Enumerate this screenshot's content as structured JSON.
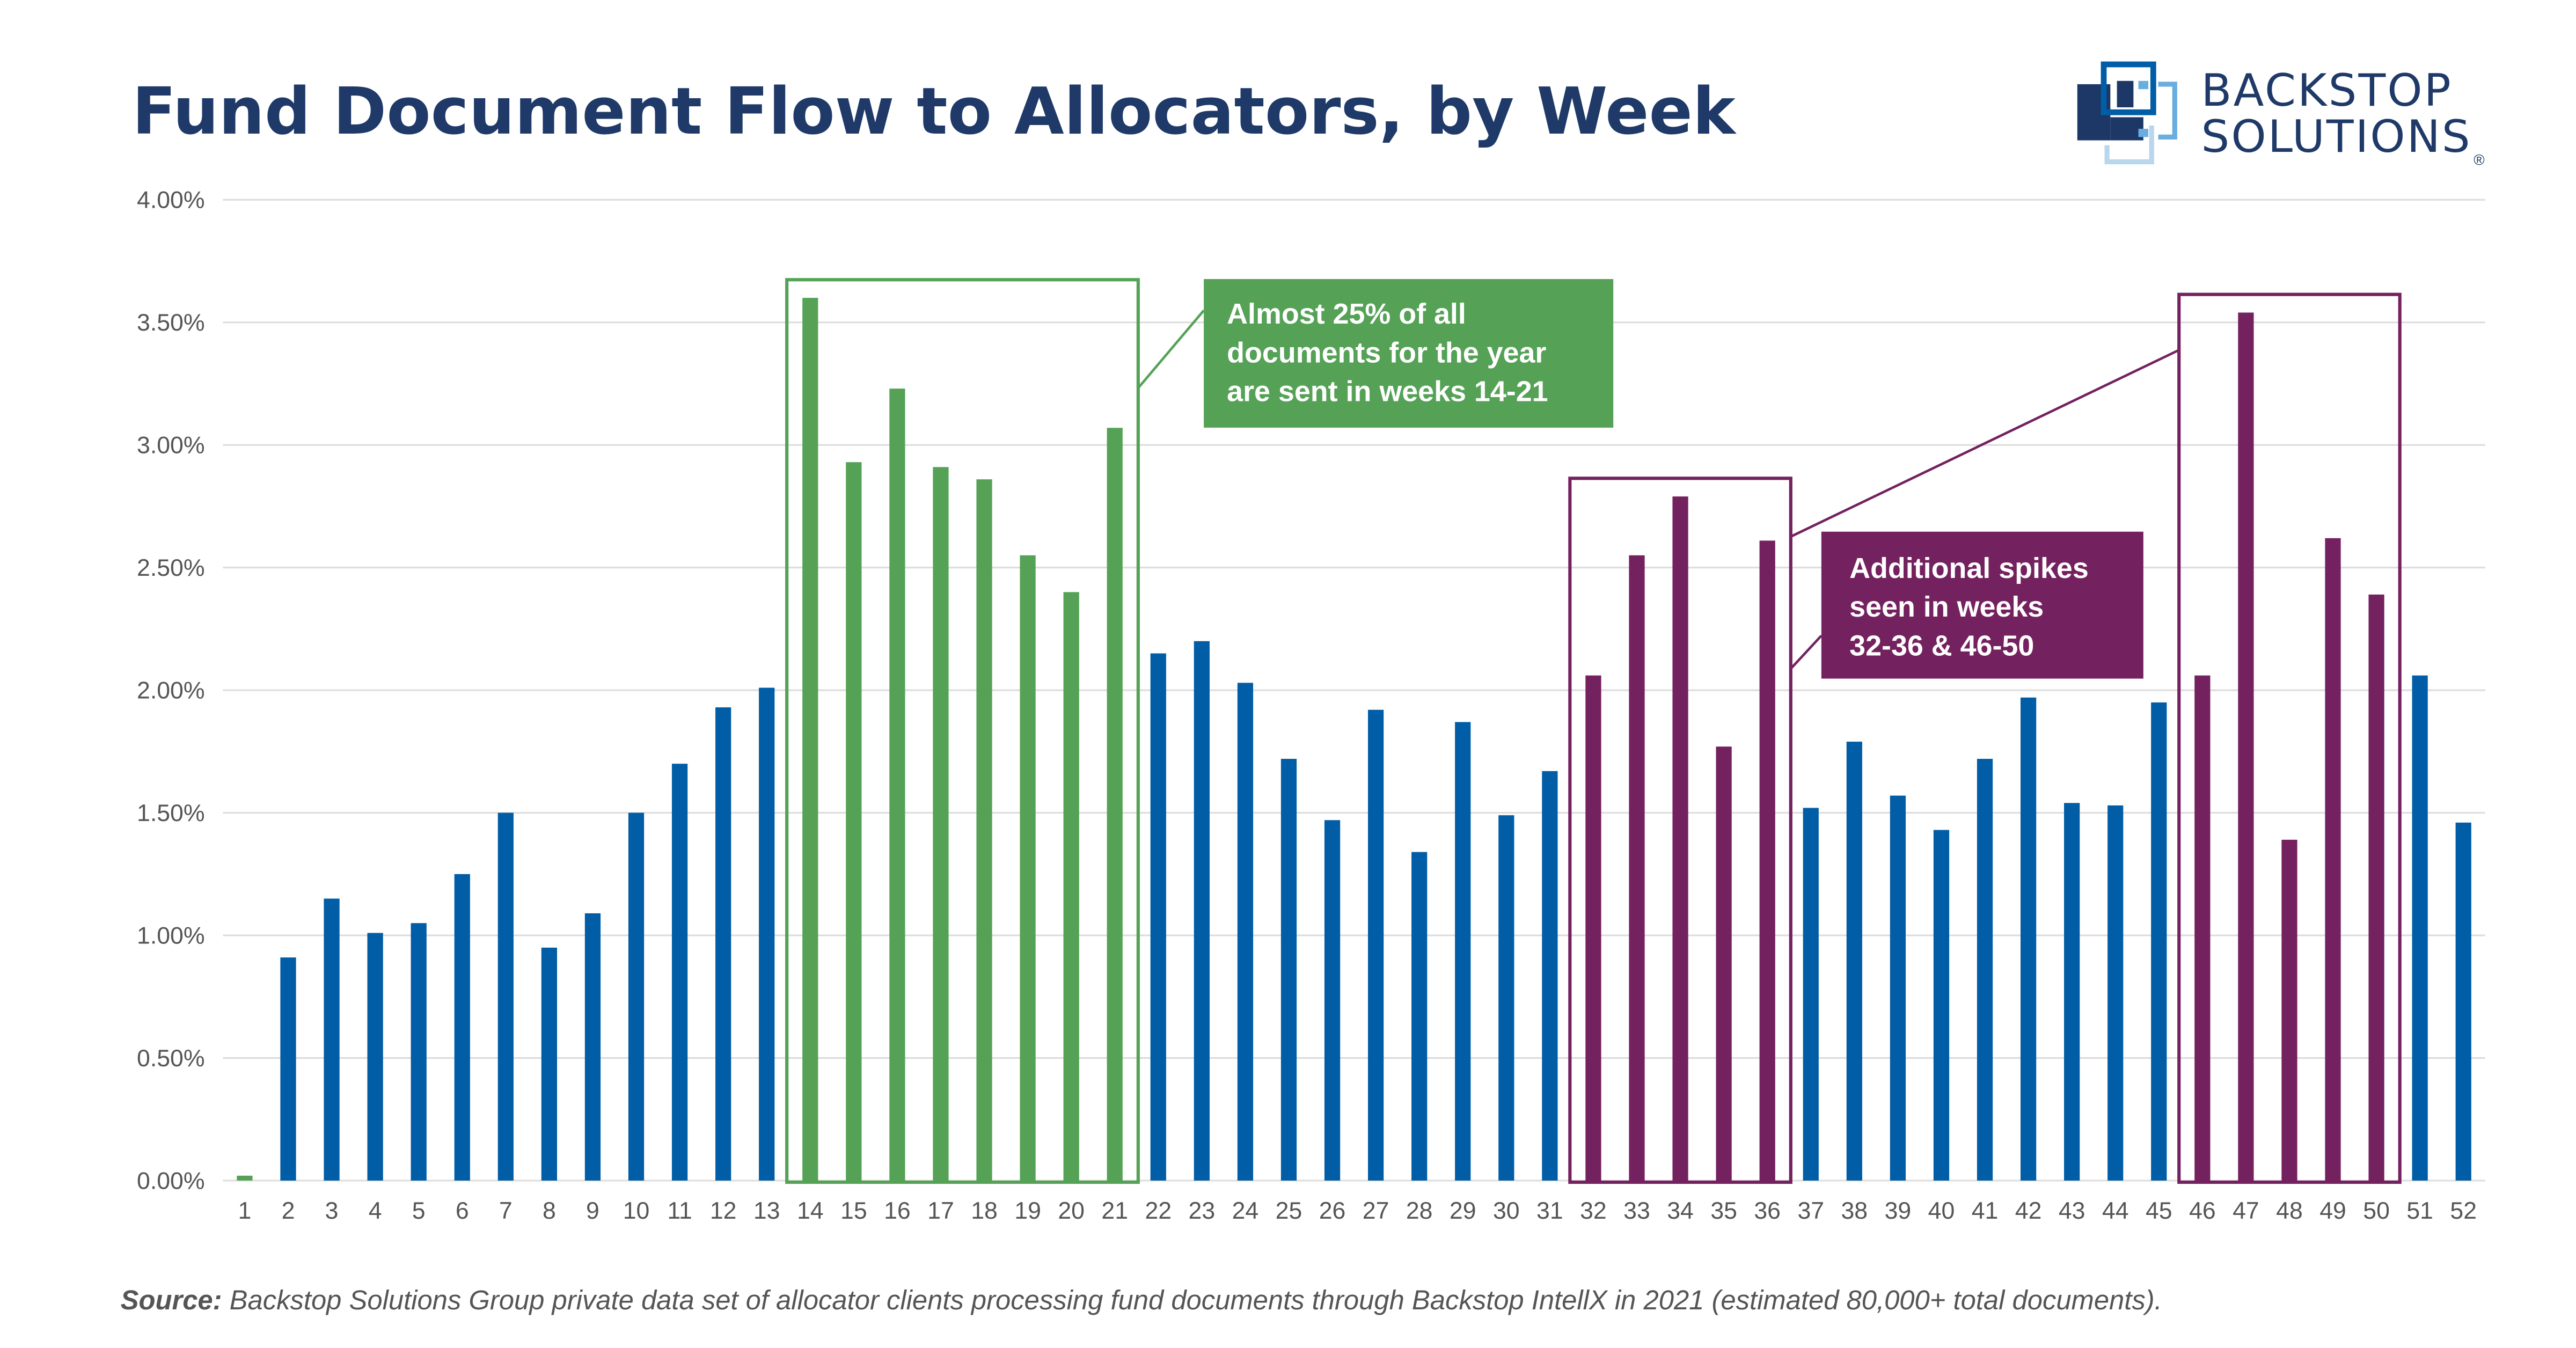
{
  "title": "Fund Document Flow to Allocators, by Week",
  "logo": {
    "line1": "BACKSTOP",
    "line2": "SOLUTIONS",
    "mark": "®"
  },
  "colors": {
    "default": "#005DA6",
    "green": "#55A257",
    "purple": "#74215F",
    "title": "#1F3A68"
  },
  "chart_data": {
    "type": "bar",
    "title": "Fund Document Flow to Allocators, by Week",
    "xlabel": "",
    "ylabel": "",
    "ylim": [
      0,
      4
    ],
    "y_ticks": [
      "0.00%",
      "0.50%",
      "1.00%",
      "1.50%",
      "2.00%",
      "2.50%",
      "3.00%",
      "3.50%",
      "4.00%"
    ],
    "grid": true,
    "categories": [
      "1",
      "2",
      "3",
      "4",
      "5",
      "6",
      "7",
      "8",
      "9",
      "10",
      "11",
      "12",
      "13",
      "14",
      "15",
      "16",
      "17",
      "18",
      "19",
      "20",
      "21",
      "22",
      "23",
      "24",
      "25",
      "26",
      "27",
      "28",
      "29",
      "30",
      "31",
      "32",
      "33",
      "34",
      "35",
      "36",
      "37",
      "38",
      "39",
      "40",
      "41",
      "42",
      "43",
      "44",
      "45",
      "46",
      "47",
      "48",
      "49",
      "50",
      "51",
      "52"
    ],
    "values": [
      0.02,
      0.91,
      1.15,
      1.01,
      1.05,
      1.25,
      1.5,
      0.95,
      1.09,
      1.5,
      1.7,
      1.93,
      2.01,
      3.6,
      2.93,
      3.23,
      2.91,
      2.86,
      2.55,
      2.4,
      3.07,
      2.15,
      2.2,
      2.03,
      1.72,
      1.47,
      1.92,
      1.34,
      1.87,
      1.49,
      1.67,
      2.06,
      2.55,
      2.79,
      1.77,
      2.61,
      1.52,
      1.79,
      1.57,
      1.43,
      1.72,
      1.97,
      1.54,
      1.53,
      1.95,
      2.06,
      3.54,
      1.39,
      2.62,
      2.39,
      2.06,
      1.46
    ],
    "unit": "%",
    "highlights": [
      {
        "weeks": [
          14,
          21
        ],
        "color": "green",
        "text": [
          "Almost 25% of all",
          "documents for the year",
          "are sent in weeks 14-21"
        ]
      },
      {
        "weeks": [
          32,
          36
        ],
        "color": "purple"
      },
      {
        "weeks": [
          46,
          50
        ],
        "color": "purple",
        "text": [
          "Additional spikes",
          "seen in weeks",
          "32-36 & 46-50"
        ]
      }
    ],
    "green_weeks_extra": [
      1
    ]
  },
  "source": {
    "label": "Source:",
    "text": " Backstop Solutions Group private data set of allocator clients processing fund documents through Backstop IntellX in 2021 (estimated 80,000+ total documents)."
  }
}
